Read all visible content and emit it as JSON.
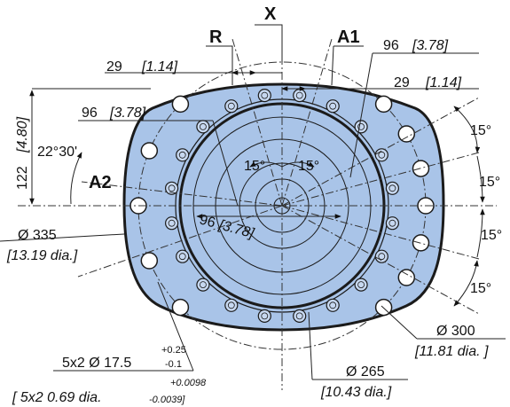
{
  "colors": {
    "body_fill": "#a9c4e8",
    "outline": "#1b1b1b"
  },
  "labels": {
    "x": "X",
    "r": "R",
    "a1": "A1",
    "a2": "A2",
    "angle_15_left": "15°",
    "angle_15_right": "15°",
    "angle_r1": "15°",
    "angle_r2": "15°",
    "angle_r3": "15°",
    "angle_r4": "15°"
  },
  "dimensions": {
    "d29_left": "29",
    "d29_left_in": "[1.14]",
    "d96_top": "96",
    "d96_top_in": "[3.78]",
    "d29_right": "29",
    "d29_right_in": "[1.14]",
    "d96_left": "96",
    "d96_left_in": "[3.78]",
    "d96_center": "96",
    "d96_center_in": "[3.78]",
    "v122": "122",
    "v122_in": "[4.80]",
    "angle_22": "22°30'",
    "dia335": "Ø 335",
    "dia335_in": "[13.19 dia.]",
    "dia300": "Ø 300",
    "dia300_in": "[11.81 dia. ]",
    "dia265": "Ø 265",
    "dia265_in": "[10.43 dia.]",
    "bolt": "5x2 Ø 17.5",
    "bolt_tol_up": "+0.25",
    "bolt_tol_down": "-0.1",
    "bolt_in_tol_up": "+0.0098",
    "bolt_in": "[ 5x2 0.69 dia.",
    "bolt_in_tol_down": "-0.0039]"
  }
}
